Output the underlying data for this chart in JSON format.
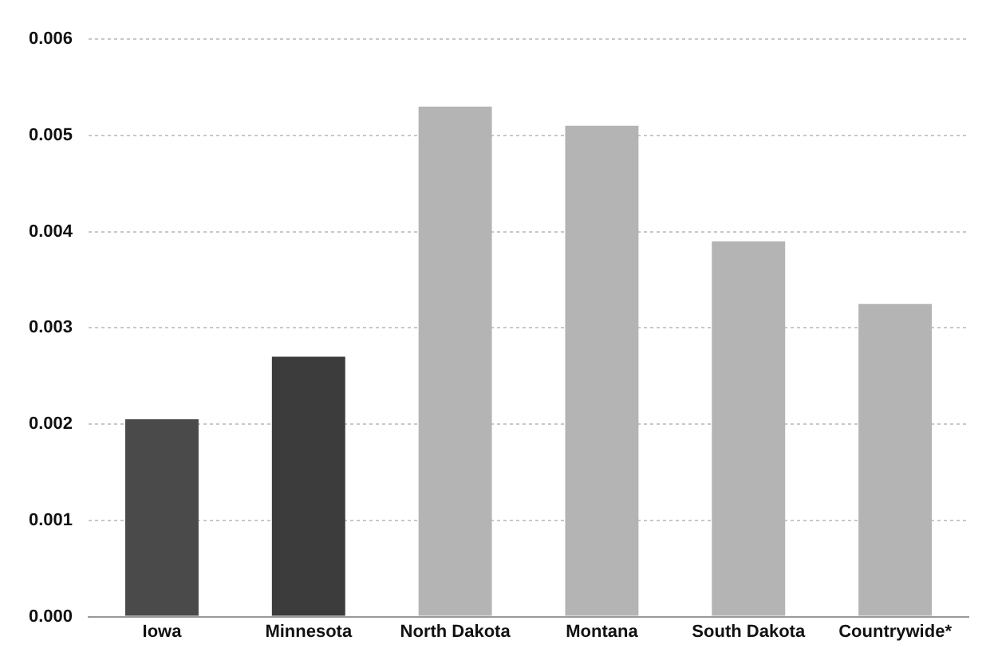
{
  "chart_data": {
    "type": "bar",
    "categories": [
      "Iowa",
      "Minnesota",
      "North Dakota",
      "Montana",
      "South Dakota",
      "Countrywide*"
    ],
    "values": [
      0.00205,
      0.0027,
      0.0053,
      0.0051,
      0.0039,
      0.00325
    ],
    "colors": [
      "#4a4a4a",
      "#3c3c3c",
      "#b4b4b4",
      "#b4b4b4",
      "#b4b4b4",
      "#b4b4b4"
    ],
    "ylim": [
      0,
      0.006
    ],
    "yticks": [
      {
        "value": 0,
        "label": "0.000"
      },
      {
        "value": 0.001,
        "label": "0.001"
      },
      {
        "value": 0.002,
        "label": "0.002"
      },
      {
        "value": 0.003,
        "label": "0.003"
      },
      {
        "value": 0.004,
        "label": "0.004"
      },
      {
        "value": 0.005,
        "label": "0.005"
      },
      {
        "value": 0.006,
        "label": "0.006"
      }
    ],
    "grid": "y",
    "legend": false
  }
}
